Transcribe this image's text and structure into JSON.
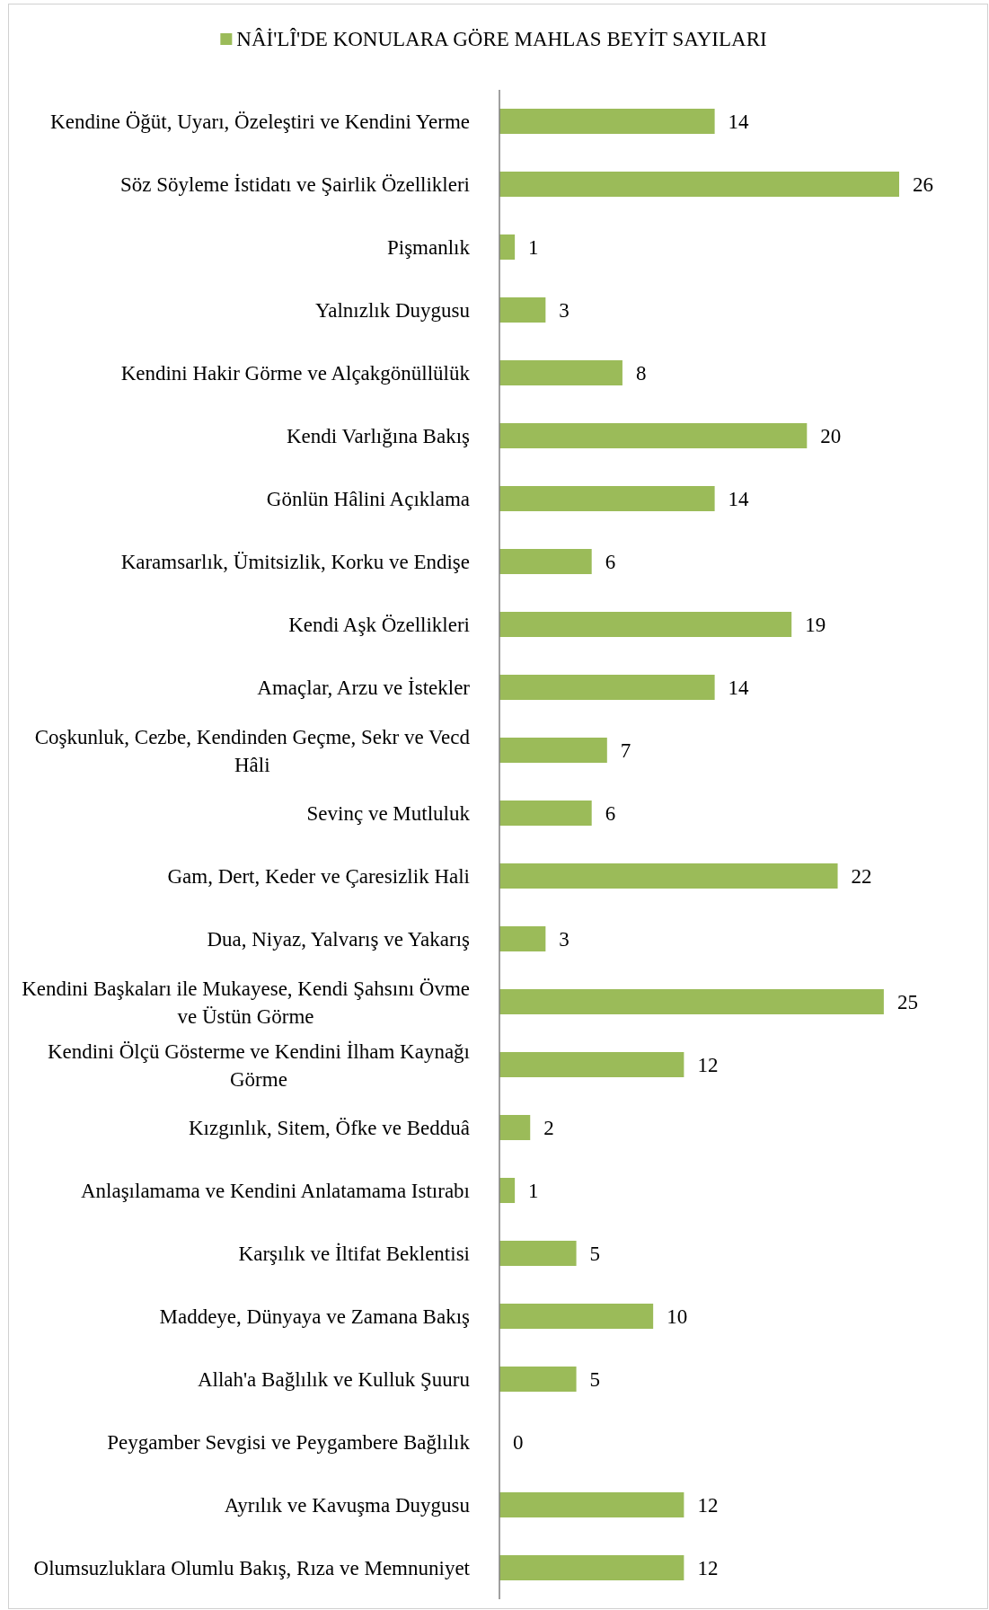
{
  "chart_data": {
    "type": "bar",
    "orientation": "horizontal",
    "legend": "top",
    "data_labels": true,
    "categories": [
      "Kendine Öğüt, Uyarı, Özeleştiri ve Kendini Yerme",
      "Söz Söyleme İstidatı ve Şairlik Özellikleri",
      "Pişmanlık",
      "Yalnızlık Duygusu",
      "Kendini Hakir Görme ve Alçakgönüllülük",
      "Kendi Varlığına Bakış",
      "Gönlün Hâlini Açıklama",
      "Karamsarlık, Ümitsizlik, Korku ve Endişe",
      "Kendi Aşk Özellikleri",
      "Amaçlar, Arzu ve İstekler",
      "Coşkunluk, Cezbe, Kendinden Geçme, Sekr ve Vecd Hâli",
      "Sevinç ve Mutluluk",
      "Gam, Dert, Keder ve Çaresizlik Hali",
      "Dua, Niyaz, Yalvarış ve Yakarış",
      "Kendini Başkaları ile Mukayese, Kendi Şahsını Övme ve Üstün Görme",
      "Kendini Ölçü Gösterme ve Kendini İlham Kaynağı Görme",
      "Kızgınlık, Sitem, Öfke ve Bedduâ",
      "Anlaşılamama ve Kendini Anlatamama Istırabı",
      "Karşılık ve İltifat Beklentisi",
      "Maddeye, Dünyaya ve Zamana Bakış",
      "Allah'a Bağlılık ve Kulluk Şuuru",
      "Peygamber Sevgisi ve Peygambere Bağlılık",
      "Ayrılık ve Kavuşma Duygusu",
      "Olumsuzluklara Olumlu Bakış, Rıza ve Memnuniyet"
    ],
    "series": [
      {
        "name": "NÂİ'LÎ'DE KONULARA GÖRE MAHLAS BEYİT SAYILARI",
        "color": "#9bbb59",
        "values": [
          14,
          26,
          1,
          3,
          8,
          20,
          14,
          6,
          19,
          14,
          7,
          6,
          22,
          3,
          25,
          12,
          2,
          1,
          5,
          10,
          5,
          0,
          12,
          12
        ]
      }
    ]
  }
}
